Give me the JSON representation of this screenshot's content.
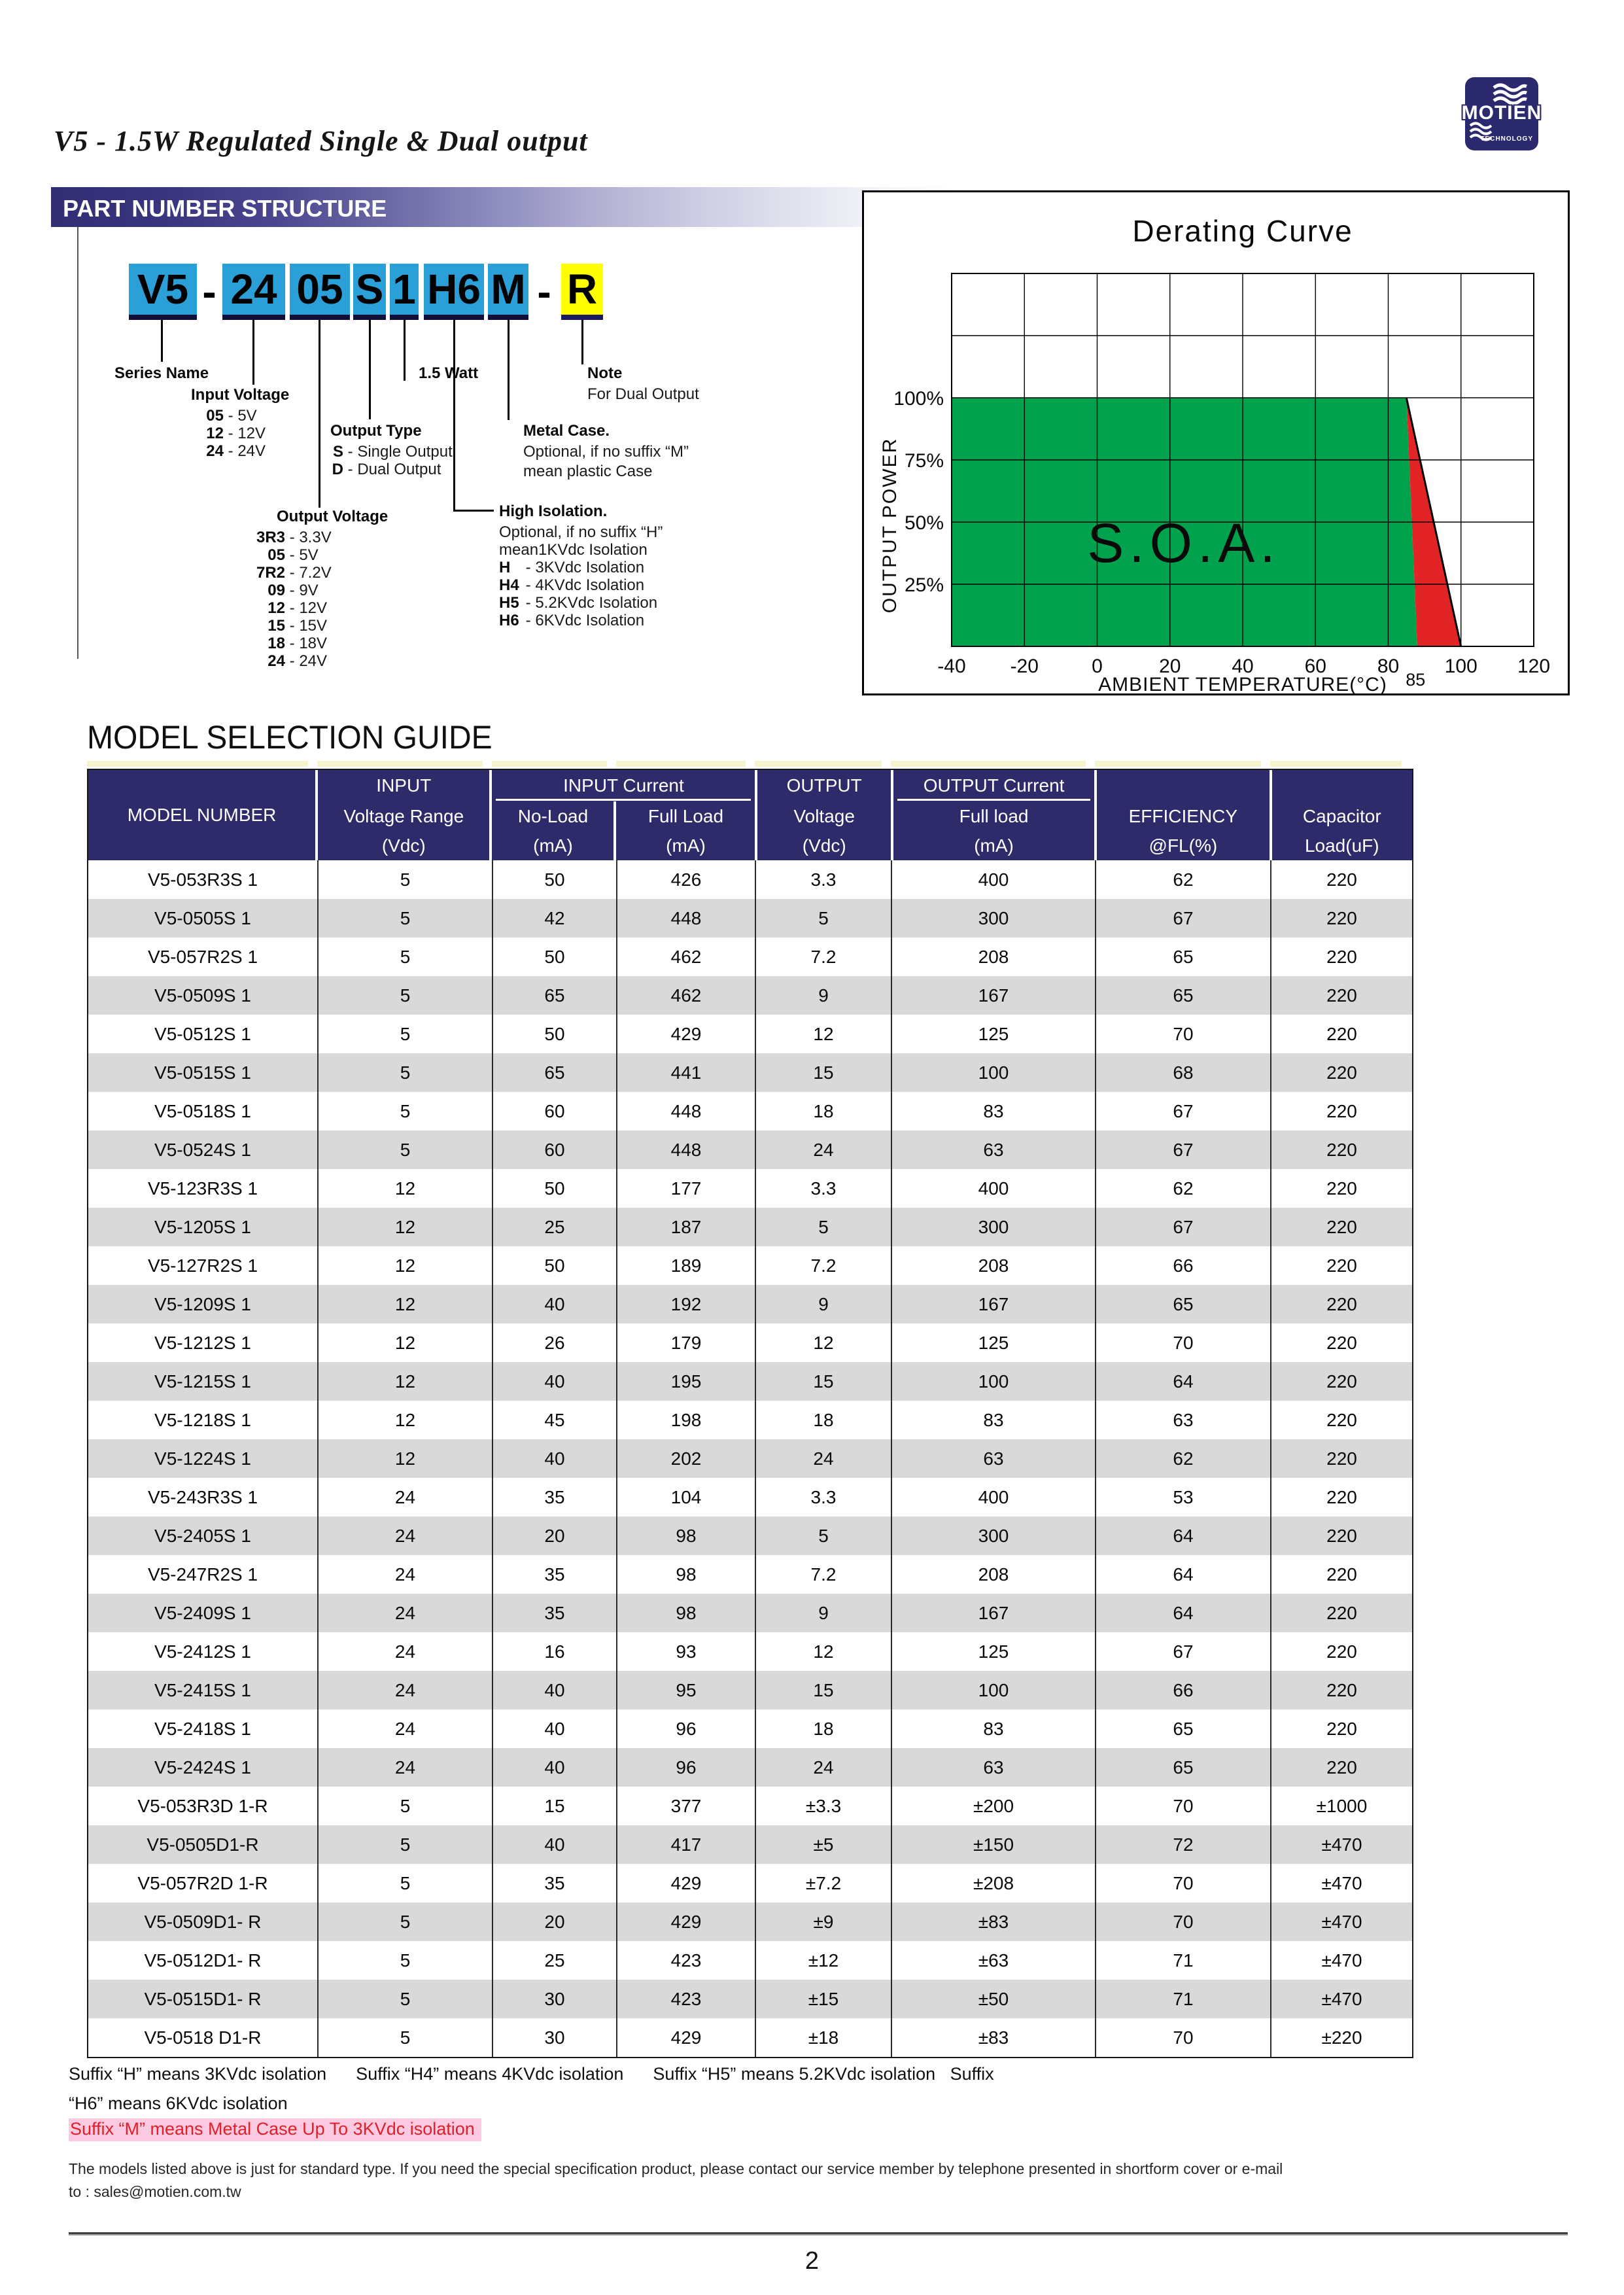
{
  "page": {
    "number": "2",
    "title": "V5 - 1.5W Regulated Single & Dual output"
  },
  "logo": {
    "name": "MOTIEN",
    "sub": "TECHNOLOGY",
    "navy": "#2b2a6e"
  },
  "part_number": {
    "header": "PART NUMBER STRUCTURE",
    "boxes": [
      {
        "text": "V5",
        "style": "blue"
      },
      {
        "text": "-",
        "style": "plain"
      },
      {
        "text": "24",
        "style": "blue"
      },
      {
        "text": "05",
        "style": "blue"
      },
      {
        "text": "S",
        "style": "blue"
      },
      {
        "text": "1",
        "style": "blue"
      },
      {
        "text": "H6",
        "style": "blue"
      },
      {
        "text": "M",
        "style": "blue"
      },
      {
        "text": "-",
        "style": "plain"
      },
      {
        "text": "R",
        "style": "yellow"
      }
    ],
    "series_name": {
      "title": "Series Name"
    },
    "input_voltage": {
      "title": "Input Voltage",
      "items": [
        {
          "key": "05",
          "value": "5V"
        },
        {
          "key": "12",
          "value": "12V"
        },
        {
          "key": "24",
          "value": "24V"
        }
      ]
    },
    "output_type": {
      "title": "Output Type",
      "items": [
        {
          "key": "S",
          "value": "Single Output"
        },
        {
          "key": "D",
          "value": "Dual Output"
        }
      ]
    },
    "watt": {
      "title": "1.5 Watt"
    },
    "note": {
      "title": "Note",
      "line": "For Dual Output"
    },
    "metal_case": {
      "title": "Metal Case.",
      "lines": [
        "Optional, if no suffix “M”",
        "mean plastic Case"
      ]
    },
    "output_voltage": {
      "title": "Output Voltage",
      "items": [
        {
          "key": "3R3",
          "value": "3.3V"
        },
        {
          "key": "05",
          "value": "5V"
        },
        {
          "key": "7R2",
          "value": "7.2V"
        },
        {
          "key": "09",
          "value": "9V"
        },
        {
          "key": "12",
          "value": "12V"
        },
        {
          "key": "15",
          "value": "15V"
        },
        {
          "key": "18",
          "value": "18V"
        },
        {
          "key": "24",
          "value": "24V"
        }
      ]
    },
    "high_isolation": {
      "title": "High Isolation.",
      "lines": [
        "Optional,  if no suffix “H”",
        "mean1KVdc Isolation"
      ],
      "items": [
        {
          "key": "H",
          "value": "- 3KVdc Isolation"
        },
        {
          "key": "H4",
          "value": "- 4KVdc Isolation"
        },
        {
          "key": "H5",
          "value": "- 5.2KVdc Isolation"
        },
        {
          "key": "H6",
          "value": "- 6KVdc Isolation"
        }
      ]
    }
  },
  "chart_data": {
    "type": "area",
    "title": "Derating Curve",
    "xlabel": "AMBIENT TEMPERATURE(°C)",
    "ylabel": "OUTPUT POWER",
    "x_ticks": [
      -40,
      -20,
      0,
      20,
      40,
      60,
      80,
      100,
      120
    ],
    "extra_x_tick": 85,
    "y_tick_labels": [
      "25%",
      "50%",
      "75%",
      "100%"
    ],
    "xlim": [
      -40,
      120
    ],
    "ylim_pct": [
      0,
      150
    ],
    "soa_label": "S.O.A.",
    "safe_area_pts": [
      [
        -40,
        0
      ],
      [
        -40,
        100
      ],
      [
        85,
        100
      ],
      [
        88,
        0
      ]
    ],
    "derate_area_pts": [
      [
        85,
        100
      ],
      [
        100,
        0
      ],
      [
        88,
        0
      ]
    ],
    "derate_line": [
      [
        85,
        100
      ],
      [
        100,
        0
      ]
    ],
    "colors": {
      "safe": "#00a24e",
      "derate": "#e32426"
    }
  },
  "selection_guide": {
    "title": "MODEL SELECTION GUIDE",
    "header": {
      "model": "MODEL NUMBER",
      "input": "INPUT",
      "voltage_range": "Voltage Range",
      "vdc": "(Vdc)",
      "input_current": "INPUT Current",
      "no_load": "No-Load",
      "full_load": "Full Load",
      "ma": "(mA)",
      "output": "OUTPUT",
      "voltage": "Voltage",
      "output_current": "OUTPUT Current",
      "full_load2": "Full load",
      "efficiency": "EFFICIENCY",
      "fl": "@FL(%)",
      "capacitor": "Capacitor",
      "load_uf": "Load(uF)"
    },
    "rows": [
      [
        "V5-053R3S 1",
        "5",
        "50",
        "426",
        "3.3",
        "400",
        "62",
        "220"
      ],
      [
        "V5-0505S 1",
        "5",
        "42",
        "448",
        "5",
        "300",
        "67",
        "220"
      ],
      [
        "V5-057R2S 1",
        "5",
        "50",
        "462",
        "7.2",
        "208",
        "65",
        "220"
      ],
      [
        "V5-0509S 1",
        "5",
        "65",
        "462",
        "9",
        "167",
        "65",
        "220"
      ],
      [
        "V5-0512S 1",
        "5",
        "50",
        "429",
        "12",
        "125",
        "70",
        "220"
      ],
      [
        "V5-0515S 1",
        "5",
        "65",
        "441",
        "15",
        "100",
        "68",
        "220"
      ],
      [
        "V5-0518S 1",
        "5",
        "60",
        "448",
        "18",
        "83",
        "67",
        "220"
      ],
      [
        "V5-0524S 1",
        "5",
        "60",
        "448",
        "24",
        "63",
        "67",
        "220"
      ],
      [
        "V5-123R3S 1",
        "12",
        "50",
        "177",
        "3.3",
        "400",
        "62",
        "220"
      ],
      [
        "V5-1205S 1",
        "12",
        "25",
        "187",
        "5",
        "300",
        "67",
        "220"
      ],
      [
        "V5-127R2S 1",
        "12",
        "50",
        "189",
        "7.2",
        "208",
        "66",
        "220"
      ],
      [
        "V5-1209S 1",
        "12",
        "40",
        "192",
        "9",
        "167",
        "65",
        "220"
      ],
      [
        "V5-1212S 1",
        "12",
        "26",
        "179",
        "12",
        "125",
        "70",
        "220"
      ],
      [
        "V5-1215S 1",
        "12",
        "40",
        "195",
        "15",
        "100",
        "64",
        "220"
      ],
      [
        "V5-1218S 1",
        "12",
        "45",
        "198",
        "18",
        "83",
        "63",
        "220"
      ],
      [
        "V5-1224S 1",
        "12",
        "40",
        "202",
        "24",
        "63",
        "62",
        "220"
      ],
      [
        "V5-243R3S 1",
        "24",
        "35",
        "104",
        "3.3",
        "400",
        "53",
        "220"
      ],
      [
        "V5-2405S 1",
        "24",
        "20",
        "98",
        "5",
        "300",
        "64",
        "220"
      ],
      [
        "V5-247R2S 1",
        "24",
        "35",
        "98",
        "7.2",
        "208",
        "64",
        "220"
      ],
      [
        "V5-2409S 1",
        "24",
        "35",
        "98",
        "9",
        "167",
        "64",
        "220"
      ],
      [
        "V5-2412S 1",
        "24",
        "16",
        "93",
        "12",
        "125",
        "67",
        "220"
      ],
      [
        "V5-2415S 1",
        "24",
        "40",
        "95",
        "15",
        "100",
        "66",
        "220"
      ],
      [
        "V5-2418S 1",
        "24",
        "40",
        "96",
        "18",
        "83",
        "65",
        "220"
      ],
      [
        "V5-2424S 1",
        "24",
        "40",
        "96",
        "24",
        "63",
        "65",
        "220"
      ],
      [
        "V5-053R3D 1-R",
        "5",
        "15",
        "377",
        "±3.3",
        "±200",
        "70",
        "±1000"
      ],
      [
        "V5-0505D1-R",
        "5",
        "40",
        "417",
        "±5",
        "±150",
        "72",
        "±470"
      ],
      [
        "V5-057R2D 1-R",
        "5",
        "35",
        "429",
        "±7.2",
        "±208",
        "70",
        "±470"
      ],
      [
        "V5-0509D1- R",
        "5",
        "20",
        "429",
        "±9",
        "±83",
        "70",
        "±470"
      ],
      [
        "V5-0512D1- R",
        "5",
        "25",
        "423",
        "±12",
        "±63",
        "71",
        "±470"
      ],
      [
        "V5-0515D1- R",
        "5",
        "30",
        "423",
        "±15",
        "±50",
        "71",
        "±470"
      ],
      [
        "V5-0518 D1-R",
        "5",
        "30",
        "429",
        "±18",
        "±83",
        "70",
        "±220"
      ]
    ]
  },
  "footer": {
    "suffix_line1": "Suffix “H” means 3KVdc isolation      Suffix “H4” means 4KVdc isolation      Suffix “H5” means 5.2KVdc isolation   Suffix",
    "suffix_line2": "“H6” means 6KVdc isolation",
    "suffix_m": "Suffix “M” means Metal Case Up To 3KVdc isolation",
    "note_line1": "The models listed above is just for standard type. If you need the special specification product, please contact our service member by telephone presented in shortform cover or e-mail",
    "note_line2": "to : sales@motien.com.tw"
  }
}
